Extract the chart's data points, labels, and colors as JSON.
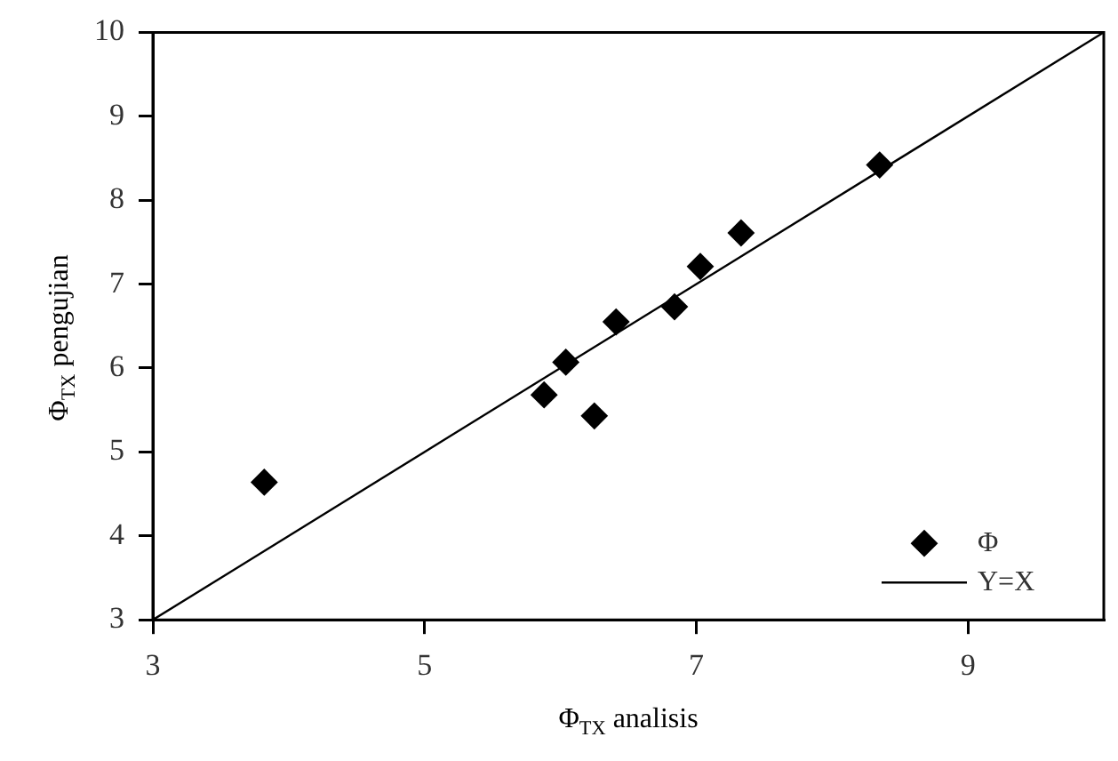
{
  "chart_data": {
    "type": "scatter",
    "xlabel": "Φ$_{TX}$ analisis",
    "ylabel": "Φ$_{TX}$ pengujian",
    "xlim": [
      3,
      10
    ],
    "ylim": [
      3,
      10
    ],
    "xticks": [
      3,
      5,
      7,
      9
    ],
    "yticks": [
      3,
      4,
      5,
      6,
      7,
      8,
      9,
      10
    ],
    "grid": false,
    "legend": "bottom right",
    "marker": "diamond",
    "series": [
      {
        "name": "Φ",
        "color": "#000000",
        "x": [
          3.82,
          5.88,
          6.04,
          6.25,
          6.41,
          6.84,
          7.03,
          7.33,
          8.35
        ],
        "values": [
          4.64,
          5.68,
          6.07,
          5.43,
          6.55,
          6.73,
          7.21,
          7.61,
          8.42
        ]
      },
      {
        "name": "Y=X",
        "type": "line",
        "color": "#000000",
        "line_style": "solid",
        "marker": "none",
        "x": [
          3,
          10
        ],
        "values": [
          3,
          10
        ]
      }
    ]
  }
}
